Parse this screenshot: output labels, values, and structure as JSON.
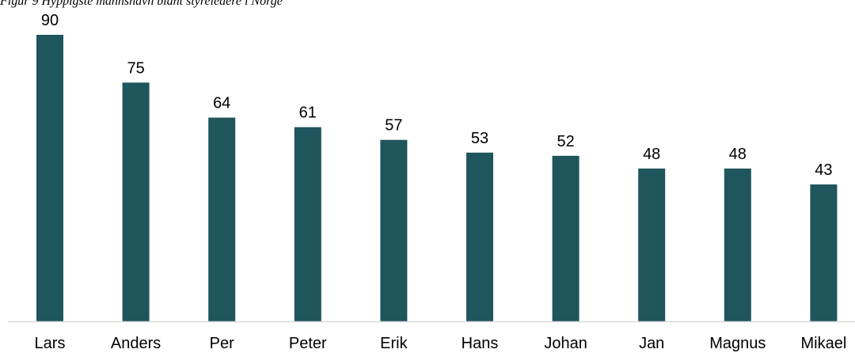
{
  "caption": "Figur 9 Hyppigste mannsnavn blant styreledere i Norge",
  "chart_data": {
    "type": "bar",
    "title": "",
    "xlabel": "",
    "ylabel": "",
    "categories": [
      "Lars",
      "Anders",
      "Per",
      "Peter",
      "Erik",
      "Hans",
      "Johan",
      "Jan",
      "Magnus",
      "Mikael"
    ],
    "values": [
      90,
      75,
      64,
      61,
      57,
      53,
      52,
      48,
      48,
      43
    ],
    "ylim": [
      0,
      90
    ],
    "bar_color": "#1f555d",
    "axis_color": "#d9d9d9",
    "grid": false,
    "legend": "none",
    "data_labels": true
  }
}
